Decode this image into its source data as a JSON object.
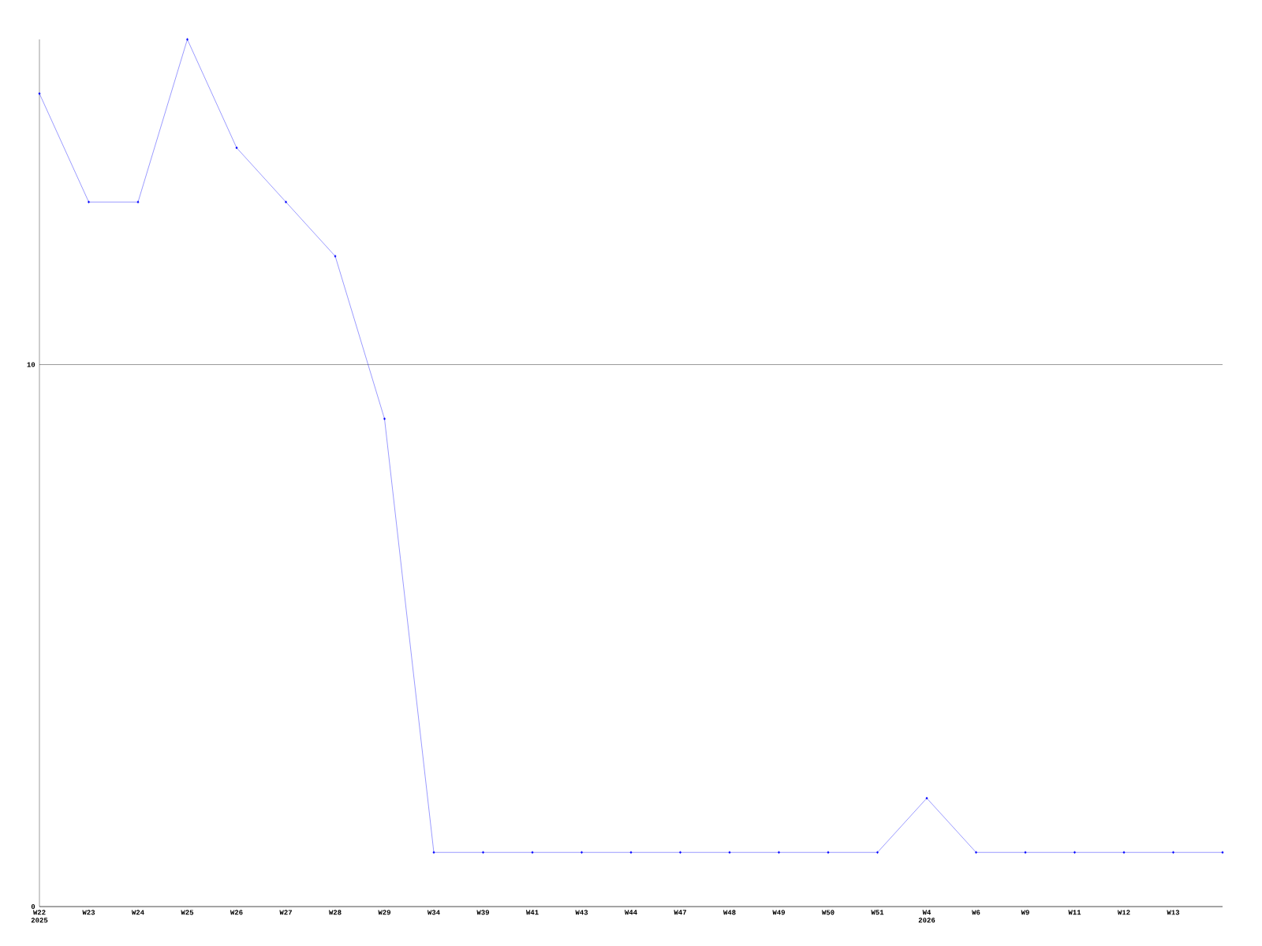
{
  "chart_data": {
    "type": "line",
    "categories": [
      "W22 2025",
      "W23",
      "W24",
      "W25",
      "W26",
      "W27",
      "W28",
      "W29",
      "W34",
      "W39",
      "W41",
      "W43",
      "W44",
      "W47",
      "W48",
      "W49",
      "W50",
      "W51",
      "W4 2026",
      "W6",
      "W9",
      "W11",
      "W12",
      "W13",
      null
    ],
    "series": [
      {
        "color": "#0000ff",
        "values": [
          15,
          13,
          13,
          16,
          14,
          13,
          12,
          9,
          1,
          1,
          1,
          1,
          1,
          1,
          1,
          1,
          1,
          1,
          2,
          1,
          1,
          1,
          1,
          1,
          1
        ]
      }
    ],
    "ylim": [
      0,
      16
    ],
    "yticks": [
      0,
      10
    ],
    "grid": "y",
    "marker": "diamond",
    "line_style": "solid"
  }
}
